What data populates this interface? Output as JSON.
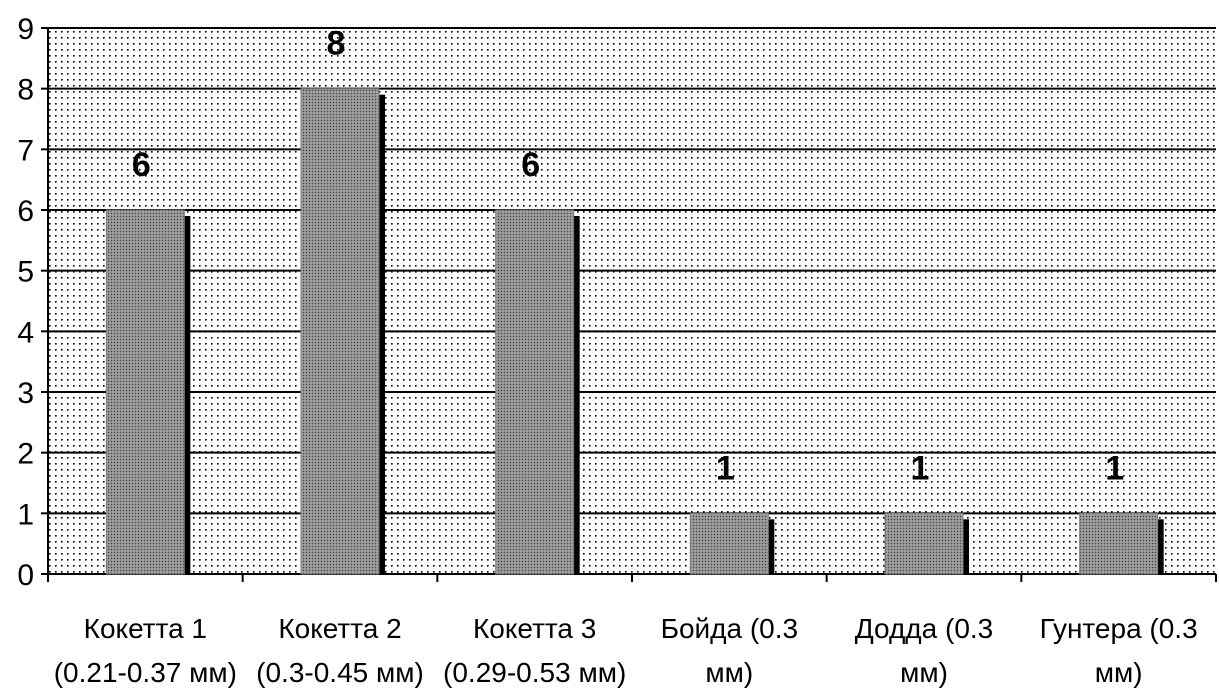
{
  "chart_data": {
    "type": "bar",
    "categories": [
      [
        "Кокетта 1",
        "(0.21-0.37 мм)"
      ],
      [
        "Кокетта 2",
        "(0.3-0.45 мм)"
      ],
      [
        "Кокетта 3",
        "(0.29-0.53 мм)"
      ],
      [
        "Бойда (0.3",
        "мм)"
      ],
      [
        "Додда (0.3",
        "мм)"
      ],
      [
        "Гунтера (0.3",
        "мм)"
      ]
    ],
    "values": [
      6,
      8,
      6,
      1,
      1,
      1
    ],
    "data_labels": [
      "6",
      "8",
      "6",
      "1",
      "1",
      "1"
    ],
    "yticks": [
      "0",
      "1",
      "2",
      "3",
      "4",
      "5",
      "6",
      "7",
      "8",
      "9"
    ],
    "ylim": [
      0,
      9
    ],
    "grid": true,
    "legend": "none",
    "title": "",
    "xlabel": "",
    "ylabel": "",
    "colors": {
      "plot_background": "#ffffff",
      "plot_dots": "#000000",
      "bar_fill": "#8c8c8c",
      "bar_shadow": "#000000",
      "gridline": "#000000"
    }
  }
}
